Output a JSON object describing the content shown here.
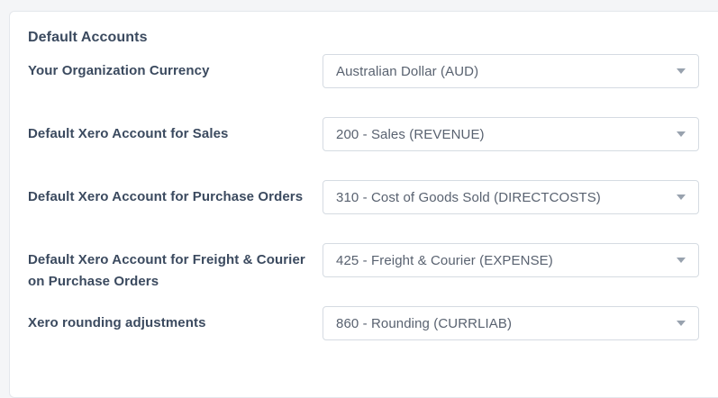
{
  "section": {
    "title": "Default Accounts"
  },
  "fields": [
    {
      "label": "Your Organization Currency",
      "value": "Australian Dollar (AUD)"
    },
    {
      "label": "Default Xero Account for Sales",
      "value": "200 - Sales (REVENUE)"
    },
    {
      "label": "Default Xero Account for Purchase Orders",
      "value": "310 - Cost of Goods Sold (DIRECTCOSTS)"
    },
    {
      "label": "Default Xero Account for Freight & Courier on Purchase Orders",
      "value": "425 - Freight & Courier (EXPENSE)"
    },
    {
      "label": "Xero rounding adjustments",
      "value": "860 - Rounding (CURRLIAB)"
    }
  ],
  "colors": {
    "page_background": "#f4f5f7",
    "panel_background": "#ffffff",
    "panel_border": "#e4e7ec",
    "label_text": "#3b4a5f",
    "dropdown_border": "#d5dbe2",
    "dropdown_text": "#596270",
    "caret": "#98a2ae"
  },
  "icons": {
    "dropdown_caret": "chevron-down"
  }
}
